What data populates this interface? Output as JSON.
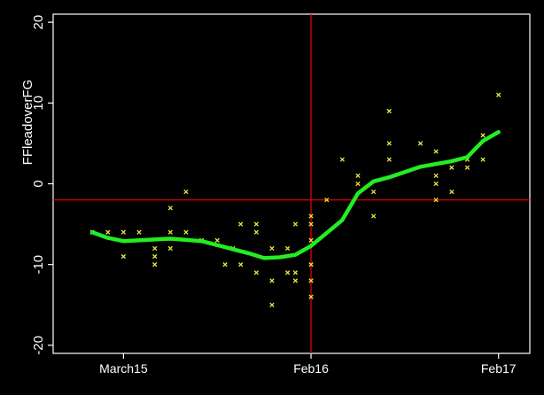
{
  "chart_data": {
    "type": "scatter",
    "ylabel": "FFleadoverFG",
    "xlim": [
      -4.5,
      26.0
    ],
    "ylim": [
      -21,
      21
    ],
    "y_ticks": [
      -20,
      -10,
      0,
      10,
      20
    ],
    "y_tick_labels": [
      "-20",
      "-10",
      "0",
      "10",
      "20"
    ],
    "x_ticks": [
      {
        "value": 0,
        "label": "March15"
      },
      {
        "value": 12,
        "label": "Feb16"
      },
      {
        "value": 24,
        "label": "Feb17"
      }
    ],
    "grid": false,
    "reference_lines": {
      "vertical_x": 12,
      "horizontal_y": -2,
      "color": "#e00000"
    },
    "colors": {
      "background": "#000000",
      "points": "#e8e838",
      "smooth_line": "#22ee22",
      "axes": "#ffffff"
    },
    "series": [
      {
        "kind": "points",
        "marker": "x",
        "points": [
          [
            -2,
            -6
          ],
          [
            -1,
            -6
          ],
          [
            0,
            -6
          ],
          [
            0,
            -9
          ],
          [
            1,
            -6
          ],
          [
            2,
            -8
          ],
          [
            2,
            -9
          ],
          [
            2,
            -10
          ],
          [
            3,
            -3
          ],
          [
            3,
            -6
          ],
          [
            3,
            -8
          ],
          [
            4,
            -1
          ],
          [
            4,
            -6
          ],
          [
            5,
            -7
          ],
          [
            6,
            -7
          ],
          [
            6.5,
            -10
          ],
          [
            7,
            -8
          ],
          [
            7.5,
            -5
          ],
          [
            7.5,
            -10
          ],
          [
            8.5,
            -5
          ],
          [
            8.5,
            -6
          ],
          [
            8.5,
            -11
          ],
          [
            9.5,
            -8
          ],
          [
            9.5,
            -12
          ],
          [
            9.5,
            -15
          ],
          [
            10.5,
            -8
          ],
          [
            10.5,
            -11
          ],
          [
            11,
            -5
          ],
          [
            11,
            -11
          ],
          [
            11,
            -12
          ],
          [
            12,
            -4
          ],
          [
            12,
            -5
          ],
          [
            12,
            -7
          ],
          [
            12,
            -10
          ],
          [
            12,
            -12
          ],
          [
            12,
            -14
          ],
          [
            13,
            -2
          ],
          [
            14,
            3
          ],
          [
            15,
            0
          ],
          [
            15,
            1
          ],
          [
            16,
            -1
          ],
          [
            16,
            -4
          ],
          [
            17,
            3
          ],
          [
            17,
            5
          ],
          [
            17,
            9
          ],
          [
            19,
            5
          ],
          [
            20,
            -2
          ],
          [
            20,
            0
          ],
          [
            20,
            1
          ],
          [
            20,
            4
          ],
          [
            21,
            -1
          ],
          [
            21,
            2
          ],
          [
            22,
            2
          ],
          [
            22,
            3
          ],
          [
            23,
            3
          ],
          [
            23,
            6
          ],
          [
            24,
            11
          ]
        ]
      },
      {
        "kind": "line",
        "points": [
          [
            -2,
            -6
          ],
          [
            -1,
            -6.7
          ],
          [
            0,
            -7.1
          ],
          [
            2,
            -6.9
          ],
          [
            3,
            -6.8
          ],
          [
            5,
            -7.1
          ],
          [
            7,
            -8.1
          ],
          [
            8,
            -8.6
          ],
          [
            9,
            -9.2
          ],
          [
            10,
            -9.1
          ],
          [
            11,
            -8.8
          ],
          [
            12,
            -7.7
          ],
          [
            14,
            -4.5
          ],
          [
            15,
            -1.2
          ],
          [
            16,
            0.3
          ],
          [
            17,
            0.8
          ],
          [
            19,
            2.1
          ],
          [
            21,
            2.8
          ],
          [
            22,
            3.3
          ],
          [
            23,
            5.3
          ],
          [
            24,
            6.4
          ]
        ]
      }
    ]
  }
}
